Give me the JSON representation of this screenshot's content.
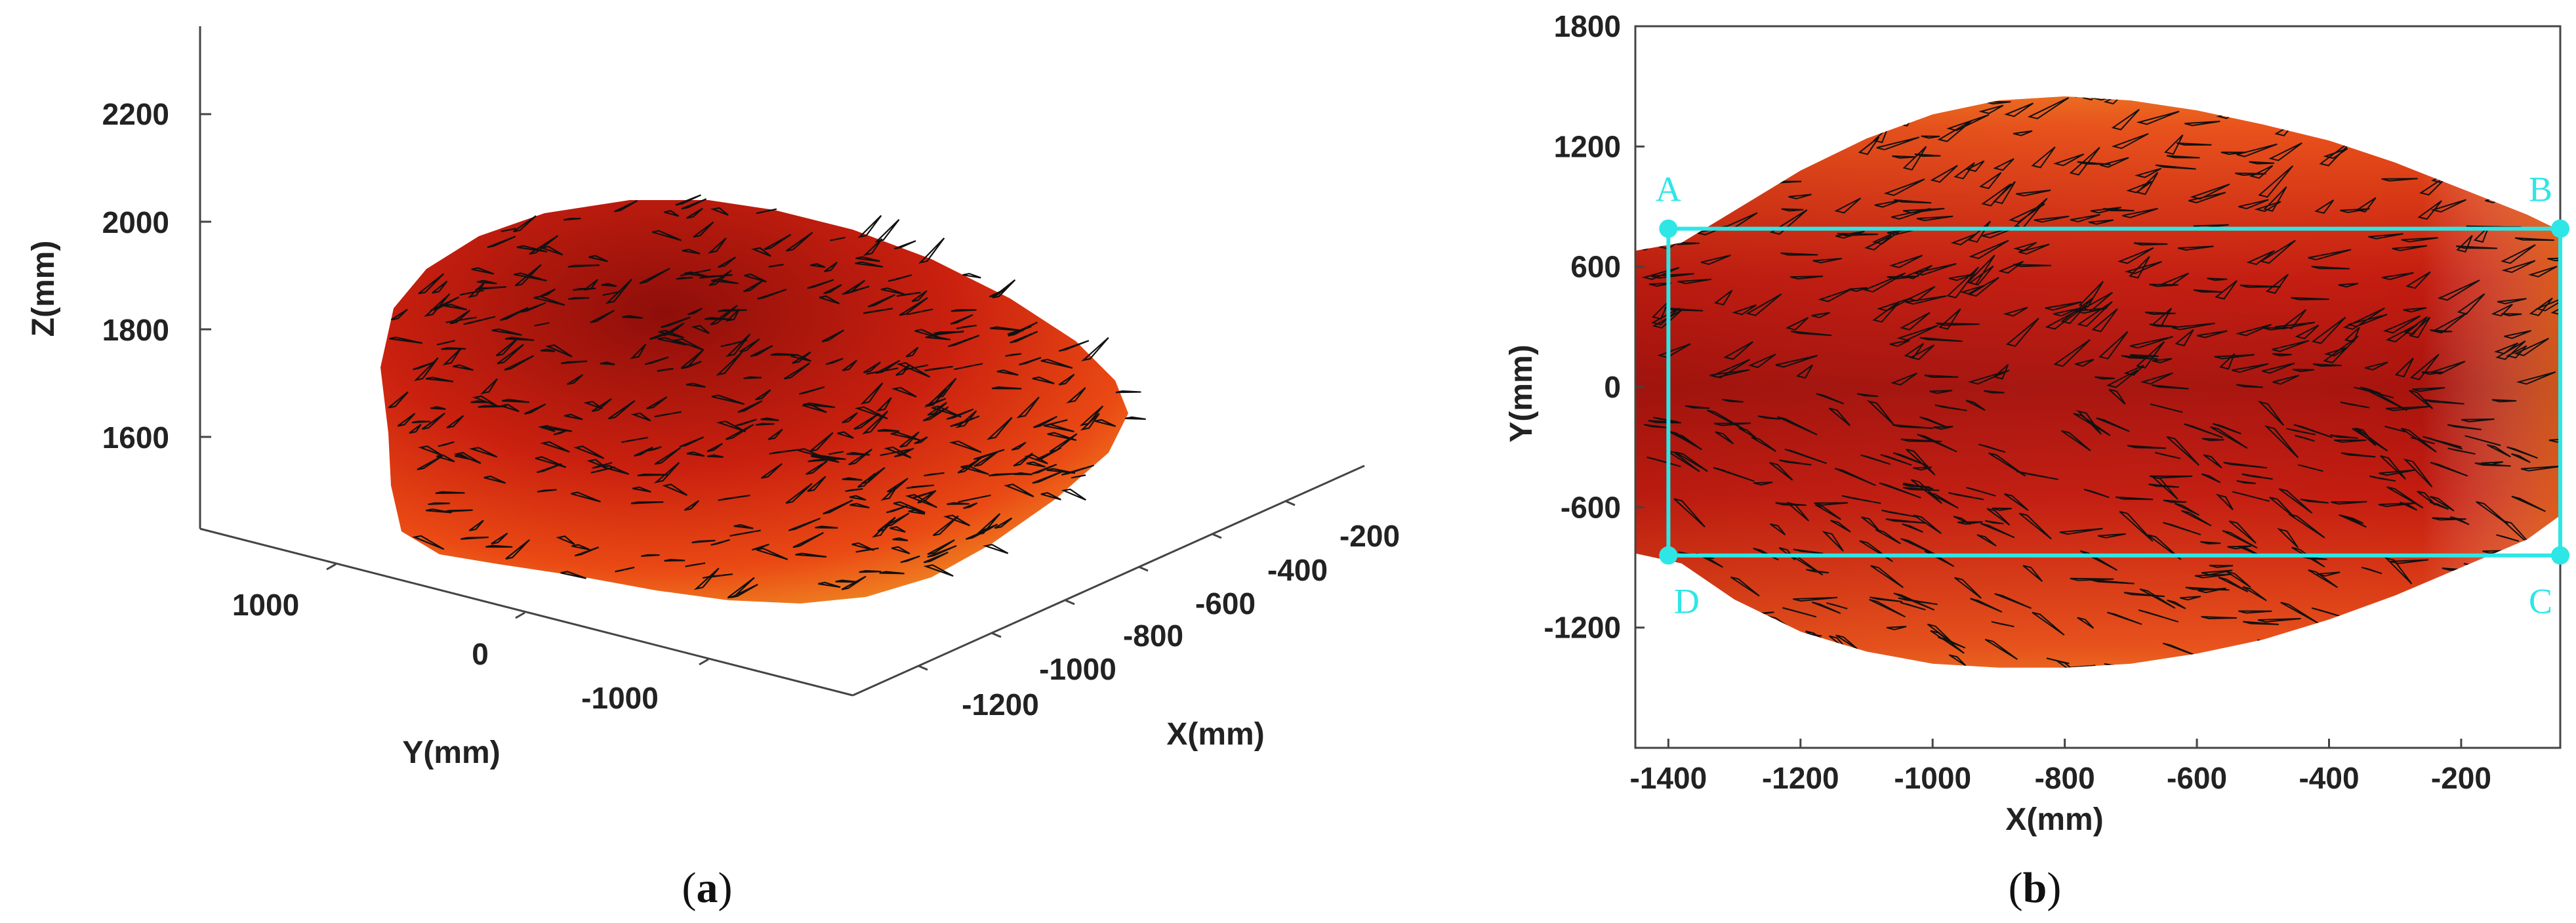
{
  "colors": {
    "surface_dark": "#a8140e",
    "surface_mid": "#e23a14",
    "surface_light": "#f6a428",
    "vectors": "#111111",
    "marker": "#2ee6e6"
  },
  "chart_data": [
    {
      "type": "surface3d",
      "panel": "a",
      "caption": {
        "open": "(",
        "letter": "a",
        "close": ")"
      },
      "xlabel": "X(mm)",
      "ylabel": "Y(mm)",
      "zlabel": "Z(mm)",
      "x_ticks": [
        -1200,
        -1000,
        -800,
        -600,
        -400,
        -200
      ],
      "x_tick_labels": [
        "-1200",
        "-1000",
        "-800",
        "-600",
        "-400",
        "-200"
      ],
      "y_ticks": [
        1000,
        0,
        -1000
      ],
      "y_tick_labels": [
        "1000",
        "0",
        "-1000"
      ],
      "z_ticks": [
        1600,
        1800,
        2000,
        2200
      ],
      "z_tick_labels": [
        "1600",
        "1800",
        "2000",
        "2200"
      ],
      "xlim": [
        -1400,
        0
      ],
      "ylim": [
        -1500,
        1500
      ],
      "zlim": [
        1400,
        2400
      ],
      "description_of_series": "surface mesh with overlaid vector field"
    },
    {
      "type": "vector_field_topview",
      "panel": "b",
      "caption": {
        "open": "(",
        "letter": "b",
        "close": ")"
      },
      "xlabel": "X(mm)",
      "ylabel": "Y(mm)",
      "x_ticks": [
        -1400,
        -1200,
        -1000,
        -800,
        -600,
        -400,
        -200
      ],
      "x_tick_labels": [
        "-1400",
        "-1200",
        "-1000",
        "-800",
        "-600",
        "-400",
        "-200"
      ],
      "y_ticks": [
        1800,
        1200,
        600,
        0,
        -600,
        -1200
      ],
      "y_tick_labels": [
        "1800",
        "1200",
        "600",
        "0",
        "-600",
        "-1200"
      ],
      "xlim": [
        -1450,
        -50
      ],
      "ylim": [
        -1800,
        1800
      ],
      "region_corners": [
        {
          "label": "A",
          "x": -1400,
          "y": 790
        },
        {
          "label": "B",
          "x": -50,
          "y": 790
        },
        {
          "label": "C",
          "x": -50,
          "y": -840
        },
        {
          "label": "D",
          "x": -1400,
          "y": -840
        }
      ]
    }
  ]
}
